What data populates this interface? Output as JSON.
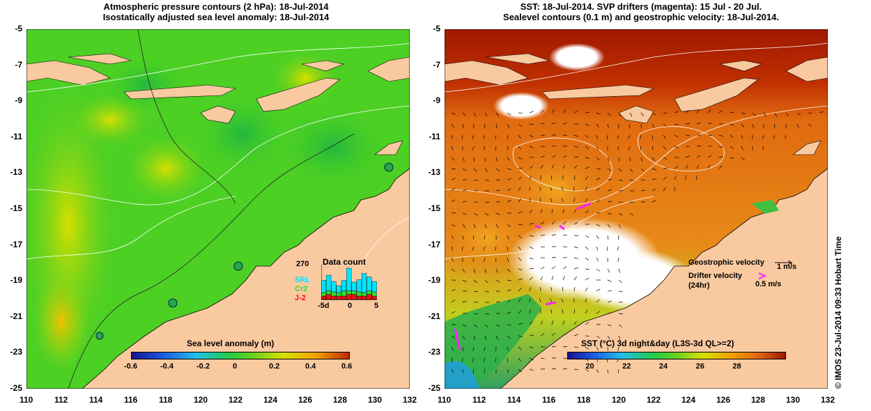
{
  "left_panel": {
    "title_line1": "Atmospheric pressure contours (2 hPa): 18-Jul-2014",
    "title_line2": "Isostatically adjusted sea level anomaly: 18-Jul-2014",
    "colorbar": {
      "label": "Sea level anomaly (m)",
      "ticks": [
        "-0.6",
        "-0.4",
        "-0.2",
        "0",
        "0.2",
        "0.4",
        "0.6"
      ]
    },
    "inset": {
      "title": "Data count",
      "max_label": "270",
      "series_labels": [
        "SRL",
        "Cr2",
        "J-2"
      ],
      "series_colors": [
        "#00e5ff",
        "#33dd33",
        "#ee1111"
      ],
      "x_ticks": [
        "-5d",
        "0",
        "5"
      ],
      "bars": [
        {
          "srl": 0.35,
          "cr2": 0.1,
          "j2": 0.1
        },
        {
          "srl": 0.45,
          "cr2": 0.1,
          "j2": 0.15
        },
        {
          "srl": 0.3,
          "cr2": 0.12,
          "j2": 0.1
        },
        {
          "srl": 0.2,
          "cr2": 0.1,
          "j2": 0.1
        },
        {
          "srl": 0.3,
          "cr2": 0.15,
          "j2": 0.1
        },
        {
          "srl": 0.65,
          "cr2": 0.1,
          "j2": 0.15
        },
        {
          "srl": 0.25,
          "cr2": 0.1,
          "j2": 0.15
        },
        {
          "srl": 0.35,
          "cr2": 0.12,
          "j2": 0.1
        },
        {
          "srl": 0.55,
          "cr2": 0.1,
          "j2": 0.1
        },
        {
          "srl": 0.4,
          "cr2": 0.1,
          "j2": 0.15
        },
        {
          "srl": 0.3,
          "cr2": 0.12,
          "j2": 0.1
        }
      ]
    }
  },
  "right_panel": {
    "title_line1": "SST: 18-Jul-2014. SVP drifters (magenta): 15 Jul - 20 Jul.",
    "title_line2": "Sealevel contours (0.1 m) and geostrophic velocity: 18-Jul-2014.",
    "colorbar": {
      "label": "SST (°C) 3d night&day (L3S-3d QL>=2)",
      "ticks": [
        "20",
        "22",
        "24",
        "26",
        "28"
      ]
    },
    "legend": {
      "geo_label": "Geostrophic velocity",
      "geo_scale": "1 m/s",
      "drifter_label": "Drifter velocity",
      "drifter_sub": "(24hr)",
      "drifter_scale": "0.5 m/s"
    }
  },
  "axes": {
    "x_ticks": [
      "110",
      "112",
      "114",
      "116",
      "118",
      "120",
      "122",
      "124",
      "126",
      "128",
      "130",
      "132"
    ],
    "y_ticks": [
      "-5",
      "-7",
      "-9",
      "-11",
      "-13",
      "-15",
      "-17",
      "-19",
      "-21",
      "-23",
      "-25"
    ]
  },
  "credit": "© IMOS 23-Jul-2014 09:33 Hobart Time",
  "colors": {
    "land": "#f9c9a0",
    "ocean_green": "#44cc22",
    "sst_warm": "#e06a10",
    "sst_hot": "#a01800"
  }
}
